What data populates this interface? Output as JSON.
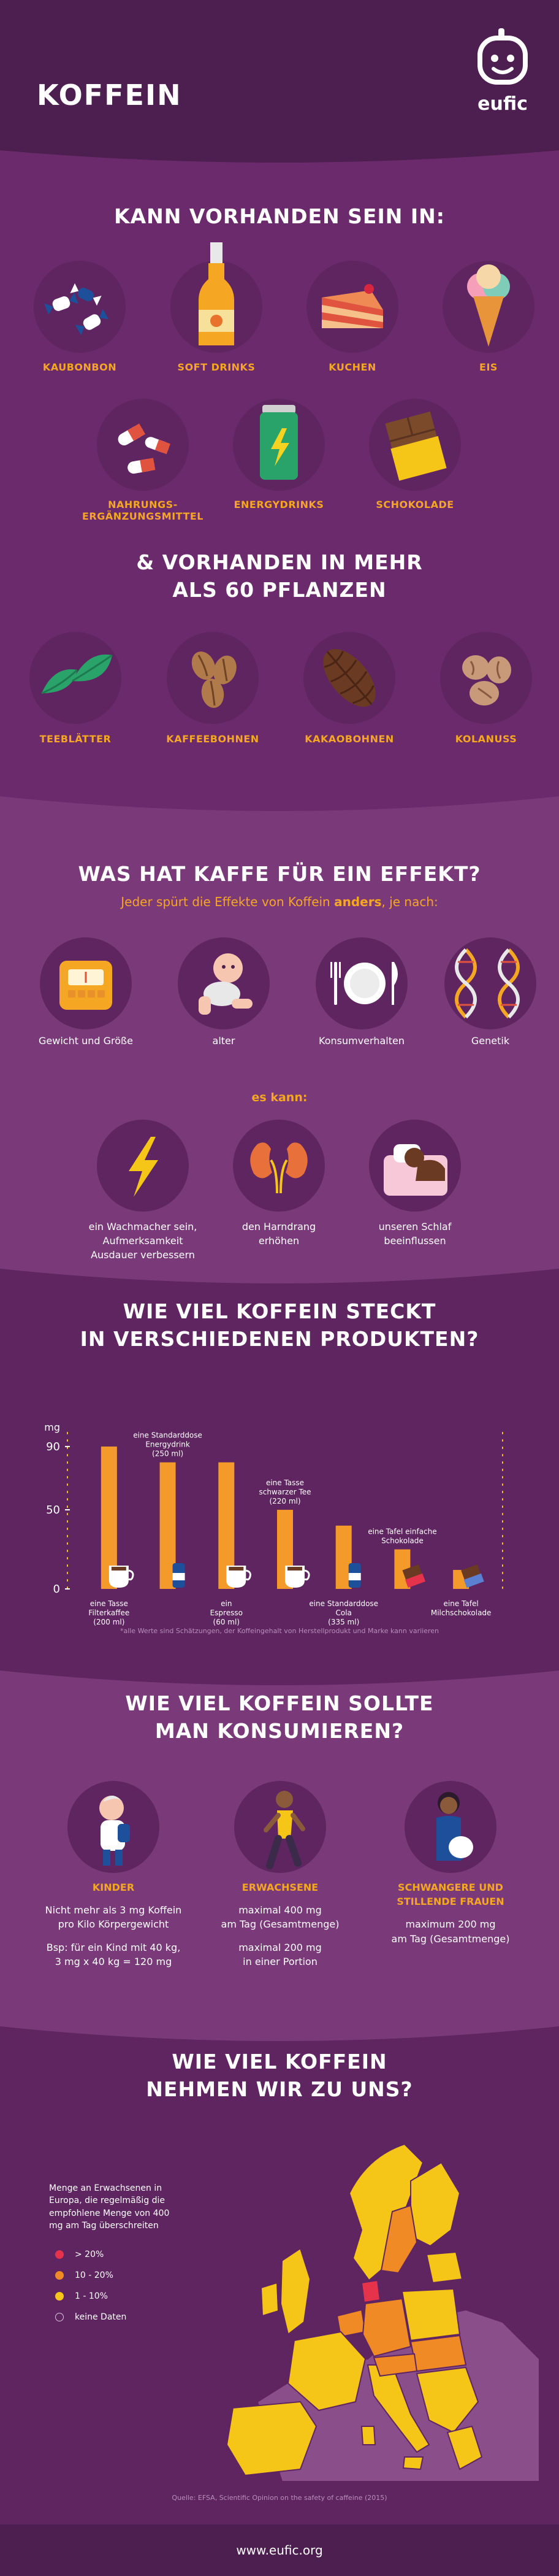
{
  "header": {
    "title": "KOFFEIN",
    "logo_text": "eufic"
  },
  "sources": {
    "title": "KANN VORHANDEN SEIN IN:",
    "items": [
      {
        "label": "KAUBONBON",
        "icon": "candy-icon"
      },
      {
        "label": "SOFT DRINKS",
        "icon": "soft-drink-bottle-icon"
      },
      {
        "label": "KUCHEN",
        "icon": "cake-icon"
      },
      {
        "label": "EIS",
        "icon": "ice-cream-icon"
      },
      {
        "label": "NAHRUNGS-",
        "label2": "ERGÄNZUNGSMITTEL",
        "icon": "pills-icon"
      },
      {
        "label": "ENERGYDRINKS",
        "icon": "energy-drink-can-icon"
      },
      {
        "label": "SCHOKOLADE",
        "icon": "chocolate-bar-icon"
      }
    ]
  },
  "plants": {
    "title_line1": "& VORHANDEN IN MEHR",
    "title_line2": "ALS 60 PFLANZEN",
    "items": [
      {
        "label": "TEEBLÄTTER",
        "icon": "tea-leaves-icon"
      },
      {
        "label": "KAFFEEBOHNEN",
        "icon": "coffee-beans-icon"
      },
      {
        "label": "KAKAOBOHNEN",
        "icon": "cocoa-pod-icon"
      },
      {
        "label": "KOLANUSS",
        "icon": "kola-nut-icon"
      }
    ]
  },
  "effects": {
    "title": "WAS HAT KAFFE FÜR EIN EFFEKT?",
    "subtitle_pre": "Jeder spürt die Effekte von Koffein ",
    "subtitle_em": "anders",
    "subtitle_post": ", je nach:",
    "factors": [
      {
        "label": "Gewicht und Größe",
        "icon": "scale-icon"
      },
      {
        "label": "alter",
        "icon": "baby-icon"
      },
      {
        "label": "Konsumverhalten",
        "icon": "plate-cutlery-icon"
      },
      {
        "label": "Genetik",
        "icon": "dna-icon"
      }
    ],
    "can_label": "es kann:",
    "outcomes": [
      {
        "l1": "ein Wachmacher sein,",
        "l2": "Aufmerksamkeit",
        "l3": "Ausdauer verbessern",
        "icon": "lightning-icon"
      },
      {
        "l1": "den Harndrang",
        "l2": "erhöhen",
        "l3": "",
        "icon": "kidneys-icon"
      },
      {
        "l1": "unseren Schlaf",
        "l2": "beeinflussen",
        "l3": "",
        "icon": "sleeping-person-icon"
      }
    ]
  },
  "products": {
    "title_line1": "WIE VIEL KOFFEIN STECKT",
    "title_line2": "IN VERSCHIEDENEN PRODUKTEN?",
    "footnote": "*alle Werte sind Schätzungen, der Koffeingehalt von Herstellprodukt und Marke kann variieren",
    "chart_data": {
      "type": "bar",
      "ylabel": "mg",
      "yticks": [
        0,
        50,
        90
      ],
      "ylim": [
        0,
        95
      ],
      "bars": [
        {
          "value": 90,
          "l1": "eine Tasse",
          "l2": "Filterkaffee",
          "l3": "(200 ml)",
          "pos": "below",
          "icon": "coffee-cup-icon"
        },
        {
          "value": 80,
          "l1": "eine Standarddose",
          "l2": "Energydrink",
          "l3": "(250 ml)",
          "pos": "above",
          "icon": "energy-can-icon"
        },
        {
          "value": 80,
          "l1": "ein",
          "l2": "Espresso",
          "l3": "(60 ml)",
          "pos": "below",
          "icon": "espresso-cup-icon"
        },
        {
          "value": 50,
          "l1": "eine Tasse",
          "l2": "schwarzer Tee",
          "l3": "(220 ml)",
          "pos": "above",
          "icon": "tea-mug-icon"
        },
        {
          "value": 40,
          "l1": "eine Standarddose",
          "l2": "Cola",
          "l3": "(335 ml)",
          "pos": "below",
          "icon": "cola-can-icon"
        },
        {
          "value": 25,
          "l1": "eine Tafel einfache",
          "l2": "Schokolade",
          "l3": "",
          "pos": "above",
          "icon": "dark-chocolate-icon"
        },
        {
          "value": 12,
          "l1": "eine Tafel",
          "l2": "Milchschokolade",
          "l3": "",
          "pos": "below",
          "icon": "milk-chocolate-icon"
        }
      ],
      "bar_color": "#f39a2b"
    }
  },
  "intake": {
    "title_line1": "WIE VIEL KOFFEIN SOLLTE",
    "title_line2": "MAN KONSUMIEREN?",
    "groups": [
      {
        "title": "KINDER",
        "title2": "",
        "icon": "child-icon",
        "lines": [
          "Nicht mehr als 3 mg Koffein",
          "pro Kilo Körpergewicht",
          "",
          "Bsp: für ein Kind mit 40 kg,",
          "3 mg x 40 kg = 120 mg"
        ]
      },
      {
        "title": "ERWACHSENE",
        "title2": "",
        "icon": "adult-runner-icon",
        "lines": [
          "maximal 400 mg",
          "am Tag (Gesamtmenge)",
          "",
          "maximal 200 mg",
          "in einer Portion"
        ]
      },
      {
        "title": "SCHWANGERE UND",
        "title2": "STILLENDE FRAUEN",
        "icon": "pregnant-woman-icon",
        "lines": [
          "maximum 200 mg",
          "am Tag (Gesamtmenge)"
        ]
      }
    ]
  },
  "europe": {
    "title_line1": "WIE VIEL KOFFEIN",
    "title_line2": "NEHMEN WIR ZU UNS?",
    "legend_intro": [
      "Menge an Erwachsenen in",
      "Europa, die regelmäßig die",
      "empfohlene Menge von 400",
      "mg am Tag überschreiten"
    ],
    "legend": [
      {
        "label": "> 20%",
        "color": "#e5334b"
      },
      {
        "label": "10 - 20%",
        "color": "#f08a24"
      },
      {
        "label": "1 - 10%",
        "color": "#f5c518"
      },
      {
        "label": "keine Daten",
        "color": "none"
      }
    ],
    "source": "Quelle: EFSA, Scientific Opinion on the safety of caffeine (2015)"
  },
  "footer": {
    "url": "www.eufic.org"
  },
  "colors": {
    "bg_dark": "#4d1e50",
    "bg_mid": "#6b2a6c",
    "accent": "#f5a623",
    "circle": "#5e2560"
  }
}
